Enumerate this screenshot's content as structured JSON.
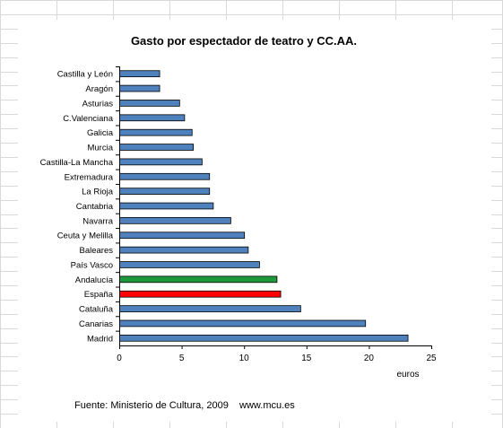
{
  "chart_data": {
    "type": "bar",
    "orientation": "horizontal",
    "title": "Gasto por espectador de teatro y CC.AA.",
    "xlabel": "euros",
    "ylabel": "",
    "xlim": [
      0,
      25
    ],
    "xticks": [
      0,
      5,
      10,
      15,
      20,
      25
    ],
    "grid": false,
    "categories": [
      "Castilla y León",
      "Aragón",
      "Asturias",
      "C.Valenciana",
      "Galicia",
      "Murcia",
      "Castilla-La Mancha",
      "Extremadura",
      "La Rioja",
      "Cantabria",
      "Navarra",
      "Ceuta y Melilla",
      "Baleares",
      "País Vasco",
      "Andalucía",
      "España",
      "Cataluña",
      "Canarias",
      "Madrid"
    ],
    "values": [
      3.2,
      3.2,
      4.8,
      5.2,
      5.8,
      5.9,
      6.6,
      7.2,
      7.2,
      7.5,
      8.9,
      10.0,
      10.3,
      11.2,
      12.6,
      12.9,
      14.5,
      19.7,
      23.1
    ],
    "colors": {
      "default": "#4f81bd",
      "Andalucía": "#1e9a3c",
      "España": "#ff0000",
      "border": "#000000"
    }
  },
  "source": "Fuente: Ministerio de Cultura, 2009    www.mcu.es"
}
